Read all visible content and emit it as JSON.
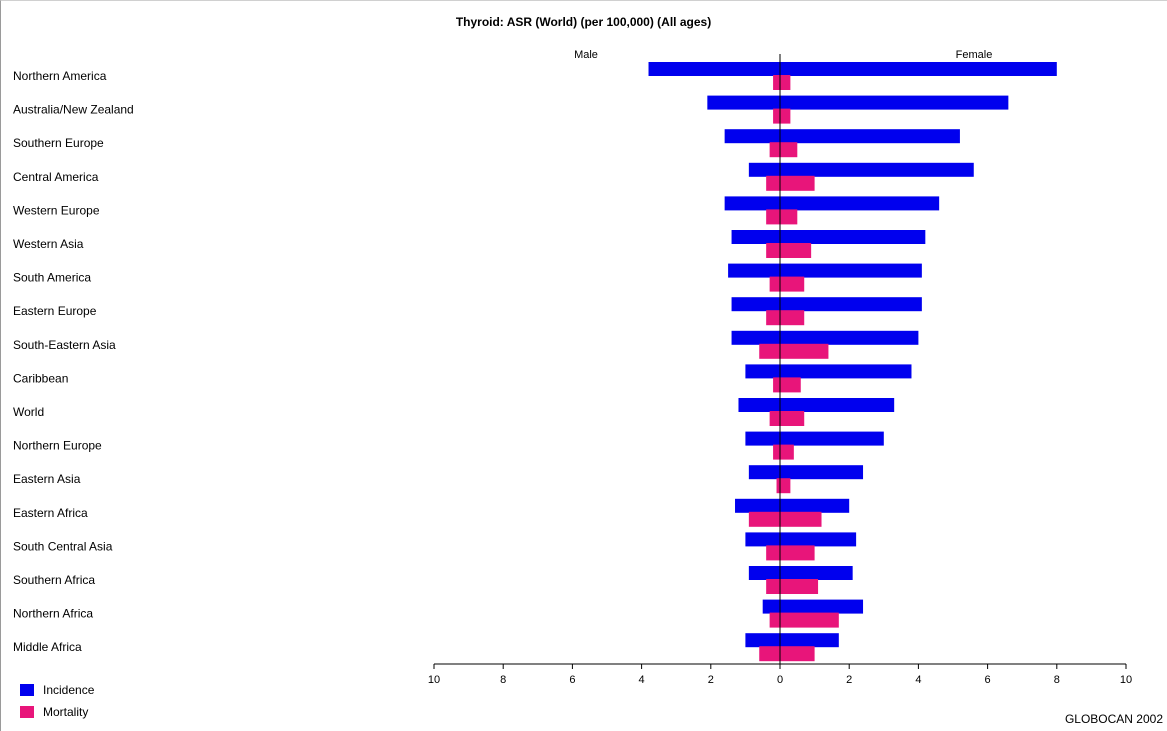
{
  "colors": {
    "incidence": "#0000ee",
    "mortality": "#e8157a"
  },
  "source": "GLOBOCAN 2002",
  "chart_data": {
    "type": "bar",
    "orientation": "horizontal-butterfly",
    "title": "Thyroid: ASR (World) (per 100,000) (All ages)",
    "left_label": "Male",
    "right_label": "Female",
    "xlim": [
      -10,
      10
    ],
    "x_ticks": [
      -10,
      -8,
      -6,
      -4,
      -2,
      0,
      2,
      4,
      6,
      8,
      10
    ],
    "x_tick_labels": [
      "10",
      "8",
      "6",
      "4",
      "2",
      "0",
      "2",
      "4",
      "6",
      "8",
      "10"
    ],
    "categories": [
      "Northern America",
      "Australia/New Zealand",
      "Southern Europe",
      "Central America",
      "Western Europe",
      "Western Asia",
      "South America",
      "Eastern Europe",
      "South-Eastern Asia",
      "Caribbean",
      "World",
      "Northern Europe",
      "Eastern Asia",
      "Eastern Africa",
      "South Central Asia",
      "Southern Africa",
      "Northern Africa",
      "Middle Africa"
    ],
    "series": [
      {
        "name": "Incidence",
        "male": [
          3.8,
          2.1,
          1.6,
          0.9,
          1.6,
          1.4,
          1.5,
          1.4,
          1.4,
          1.0,
          1.2,
          1.0,
          0.9,
          1.3,
          1.0,
          0.9,
          0.5,
          1.0
        ],
        "female": [
          8.0,
          6.6,
          5.2,
          5.6,
          4.6,
          4.2,
          4.1,
          4.1,
          4.0,
          3.8,
          3.3,
          3.0,
          2.4,
          2.0,
          2.2,
          2.1,
          2.4,
          1.7
        ]
      },
      {
        "name": "Mortality",
        "male": [
          0.2,
          0.2,
          0.3,
          0.4,
          0.4,
          0.4,
          0.3,
          0.4,
          0.6,
          0.2,
          0.3,
          0.2,
          0.1,
          0.9,
          0.4,
          0.4,
          0.3,
          0.6
        ],
        "female": [
          0.3,
          0.3,
          0.5,
          1.0,
          0.5,
          0.9,
          0.7,
          0.7,
          1.4,
          0.6,
          0.7,
          0.4,
          0.3,
          1.2,
          1.0,
          1.1,
          1.7,
          1.0
        ]
      }
    ],
    "legend": [
      "Incidence",
      "Mortality"
    ],
    "legend_position": "bottom-left",
    "grid": false
  }
}
